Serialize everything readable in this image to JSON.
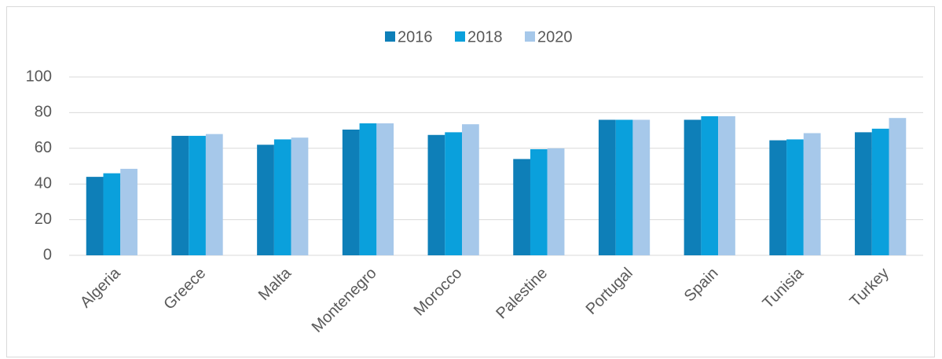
{
  "chart_data": {
    "type": "bar",
    "categories": [
      "Algeria",
      "Greece",
      "Malta",
      "Montenegro",
      "Morocco",
      "Palestine",
      "Portugal",
      "Spain",
      "Tunisia",
      "Turkey"
    ],
    "series": [
      {
        "name": "2016",
        "color": "#0e7fb8",
        "values": [
          44,
          67,
          62,
          70.5,
          67.5,
          54,
          76,
          76,
          64.5,
          69
        ]
      },
      {
        "name": "2018",
        "color": "#0aa0dc",
        "values": [
          46,
          67,
          65,
          74,
          69,
          59.5,
          76,
          78,
          65,
          71
        ]
      },
      {
        "name": "2020",
        "color": "#a6c8ea",
        "values": [
          48.5,
          68,
          66,
          74,
          73.5,
          60,
          76,
          78,
          68.5,
          77
        ]
      }
    ],
    "ylim": [
      0,
      100
    ],
    "yticks": [
      0,
      20,
      40,
      60,
      80,
      100
    ],
    "grid": true,
    "legend": "top"
  }
}
